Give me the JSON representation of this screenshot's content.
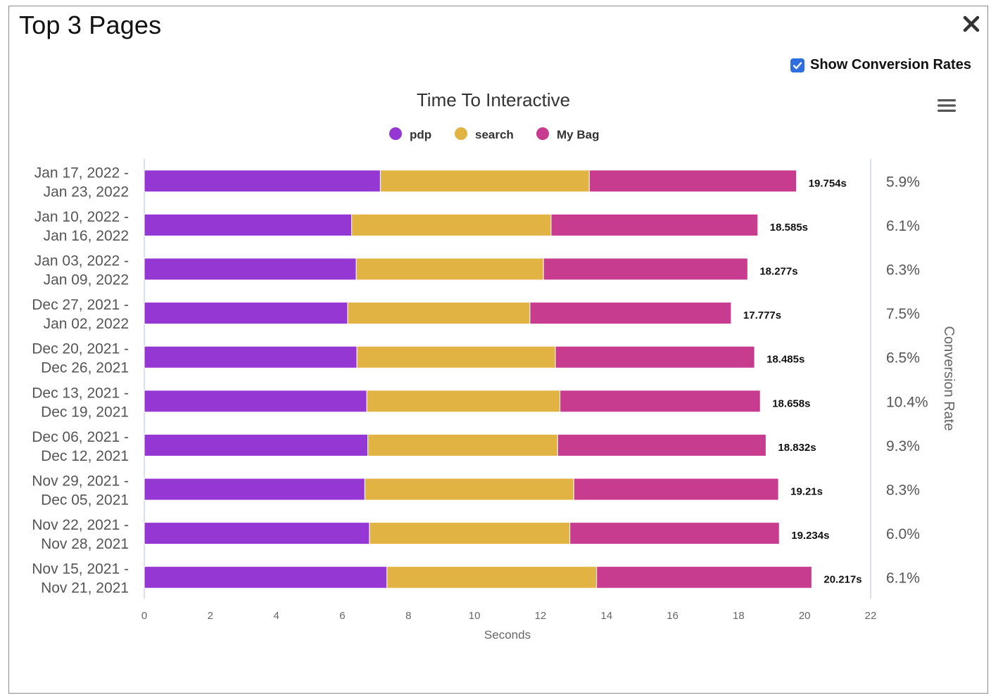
{
  "window": {
    "title": "Top 3 Pages",
    "show_conversion_label": "Show Conversion Rates",
    "show_conversion_checked": true
  },
  "chart_data": {
    "type": "bar",
    "orientation": "horizontal",
    "stacked": true,
    "title": "Time To Interactive",
    "xlabel": "Seconds",
    "right_axis_label": "Conversion Rate",
    "xlim": [
      0,
      22
    ],
    "xticks": [
      "0",
      "2",
      "4",
      "6",
      "8",
      "10",
      "12",
      "14",
      "16",
      "18",
      "20",
      "22"
    ],
    "legend_position": "top-center",
    "colors": {
      "pdp": "#9537d3",
      "search": "#e1b343",
      "My Bag": "#c73c8f"
    },
    "categories": [
      {
        "line1": "Jan 17, 2022 -",
        "line2": "Jan 23, 2022"
      },
      {
        "line1": "Jan 10, 2022 -",
        "line2": "Jan 16, 2022"
      },
      {
        "line1": "Jan 03, 2022 -",
        "line2": "Jan 09, 2022"
      },
      {
        "line1": "Dec 27, 2021 -",
        "line2": "Jan 02, 2022"
      },
      {
        "line1": "Dec 20, 2021 -",
        "line2": "Dec 26, 2021"
      },
      {
        "line1": "Dec 13, 2021 -",
        "line2": "Dec 19, 2021"
      },
      {
        "line1": "Dec 06, 2021 -",
        "line2": "Dec 12, 2021"
      },
      {
        "line1": "Nov 29, 2021 -",
        "line2": "Dec 05, 2021"
      },
      {
        "line1": "Nov 22, 2021 -",
        "line2": "Nov 28, 2021"
      },
      {
        "line1": "Nov 15, 2021 -",
        "line2": "Nov 21, 2021"
      }
    ],
    "series": [
      {
        "name": "pdp",
        "values": [
          7.15,
          6.28,
          6.42,
          6.16,
          6.44,
          6.74,
          6.77,
          6.68,
          6.82,
          7.35
        ]
      },
      {
        "name": "search",
        "values": [
          6.33,
          6.04,
          5.67,
          5.52,
          6.01,
          5.85,
          5.75,
          6.33,
          6.07,
          6.35
        ]
      },
      {
        "name": "My Bag",
        "values": [
          6.274,
          6.265,
          6.187,
          6.097,
          6.035,
          6.068,
          6.312,
          6.2,
          6.344,
          6.517
        ]
      }
    ],
    "totals": [
      "19.754s",
      "18.585s",
      "18.277s",
      "17.777s",
      "18.485s",
      "18.658s",
      "18.832s",
      "19.21s",
      "19.234s",
      "20.217s"
    ],
    "conversion_rates": [
      "5.9%",
      "6.1%",
      "6.3%",
      "7.5%",
      "6.5%",
      "10.4%",
      "9.3%",
      "8.3%",
      "6.0%",
      "6.1%"
    ]
  }
}
